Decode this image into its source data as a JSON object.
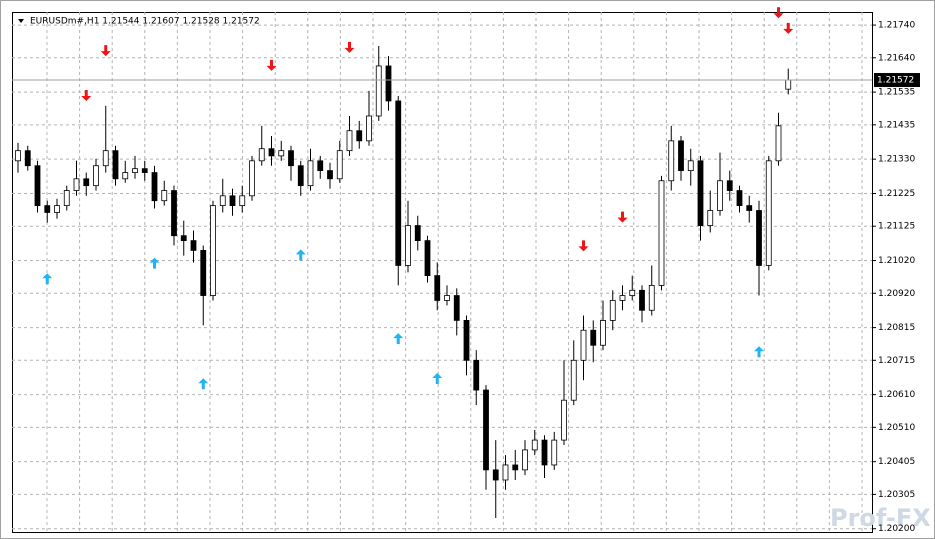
{
  "chart_data": {
    "type": "candlestick",
    "title": "EURUSDm#,H1  1.21544 1.21607 1.21528 1.21572",
    "watermark": "Prof-FX",
    "ylim": [
      1.2019,
      1.2178
    ],
    "yticks": [
      {
        "value": 1.2174,
        "label": "1.21740"
      },
      {
        "value": 1.2164,
        "label": "1.21640"
      },
      1.21535,
      1.21435,
      {
        "value": 1.2133,
        "label": "1.21330"
      },
      1.21225,
      1.21125,
      {
        "value": 1.2102,
        "label": "1.21020"
      },
      {
        "value": 1.2092,
        "label": "1.20920"
      },
      1.20815,
      1.20715,
      {
        "value": 1.2061,
        "label": "1.20610"
      },
      {
        "value": 1.2051,
        "label": "1.20510"
      },
      1.20405,
      1.20305,
      {
        "value": 1.202,
        "label": "1.20200"
      }
    ],
    "grid": true,
    "last_price": 1.21572,
    "bull_color": "#ffffff",
    "bear_color": "#000000",
    "open": [
      1.21325,
      1.21356,
      1.2131,
      1.21188,
      1.21167,
      1.21188,
      1.21234,
      1.2127,
      1.21249,
      1.2131,
      1.21356,
      1.2127,
      1.21289,
      1.21301,
      1.21289,
      1.21203,
      1.21234,
      1.21096,
      1.21081,
      1.21051,
      1.20913,
      1.21188,
      1.21218,
      1.21188,
      1.21218,
      1.21325,
      1.21362,
      1.2134,
      1.21356,
      1.2131,
      1.21249,
      1.21325,
      1.21295,
      1.2127,
      1.21356,
      1.21417,
      1.21386,
      1.21462,
      1.21615,
      1.21508,
      1.21005,
      1.21127,
      1.21081,
      1.20974,
      1.20898,
      1.20913,
      1.20837,
      1.20715,
      1.20624,
      1.2038,
      1.20349,
      1.20395,
      1.2038,
      1.20441,
      1.20471,
      1.20395,
      1.20471,
      1.20593,
      1.20715,
      1.20807,
      1.20761,
      1.20837,
      1.20898,
      1.20913,
      1.20929,
      1.20868,
      1.20944,
      1.21264,
      1.21386,
      1.21295,
      1.21325,
      1.21127,
      1.21173,
      1.21264,
      1.21234,
      1.21188,
      1.21173,
      1.21005,
      1.21325,
      1.21544
    ],
    "high": [
      1.2138,
      1.21371,
      1.21325,
      1.21203,
      1.21209,
      1.21249,
      1.21325,
      1.21289,
      1.21331,
      1.21493,
      1.21371,
      1.21325,
      1.2134,
      1.21325,
      1.2131,
      1.21264,
      1.21249,
      1.21142,
      1.21112,
      1.21066,
      1.21203,
      1.2127,
      1.2124,
      1.21249,
      1.2134,
      1.21432,
      1.21401,
      1.21386,
      1.21371,
      1.21325,
      1.21362,
      1.2134,
      1.21319,
      1.21386,
      1.21462,
      1.21447,
      1.21539,
      1.21676,
      1.21645,
      1.21523,
      1.21203,
      1.21157,
      1.21096,
      1.21014,
      1.20944,
      1.20935,
      1.20852,
      1.20746,
      1.20639,
      1.20471,
      1.20425,
      1.20441,
      1.20471,
      1.20502,
      1.20486,
      1.20496,
      1.20715,
      1.20776,
      1.20852,
      1.20837,
      1.20898,
      1.20929,
      1.20944,
      1.20974,
      1.20944,
      1.21005,
      1.21279,
      1.21432,
      1.21401,
      1.21362,
      1.2134,
      1.21234,
      1.2135,
      1.21295,
      1.21249,
      1.21218,
      1.21203,
      1.2134,
      1.21472,
      1.21607
    ],
    "low": [
      1.21289,
      1.21295,
      1.21167,
      1.21136,
      1.21148,
      1.21173,
      1.21218,
      1.21218,
      1.21234,
      1.21289,
      1.21249,
      1.21258,
      1.2127,
      1.21264,
      1.21179,
      1.21188,
      1.21066,
      1.21035,
      1.21014,
      1.20822,
      1.20898,
      1.21167,
      1.21157,
      1.21167,
      1.21203,
      1.2131,
      1.2131,
      1.21325,
      1.21264,
      1.21218,
      1.21234,
      1.2127,
      1.2124,
      1.21258,
      1.2134,
      1.21362,
      1.21371,
      1.21447,
      1.21478,
      1.20944,
      1.20984,
      1.21051,
      1.20953,
      1.20868,
      1.20883,
      1.20791,
      1.20669,
      1.20578,
      1.20319,
      1.20233,
      1.20319,
      1.20349,
      1.20364,
      1.20425,
      1.20355,
      1.2038,
      1.20456,
      1.20578,
      1.20654,
      1.20709,
      1.20746,
      1.20807,
      1.20868,
      1.20898,
      1.20831,
      1.20852,
      1.20929,
      1.21234,
      1.21264,
      1.21249,
      1.21081,
      1.21106,
      1.21157,
      1.21203,
      1.21167,
      1.21136,
      1.20913,
      1.2099,
      1.2131,
      1.21528
    ],
    "close": [
      1.21356,
      1.2131,
      1.21188,
      1.21167,
      1.21188,
      1.21234,
      1.2127,
      1.21249,
      1.2131,
      1.21356,
      1.2127,
      1.21289,
      1.21301,
      1.21289,
      1.21203,
      1.21234,
      1.21096,
      1.21081,
      1.21051,
      1.20913,
      1.21188,
      1.21218,
      1.21188,
      1.21218,
      1.21325,
      1.21362,
      1.2134,
      1.21356,
      1.2131,
      1.21249,
      1.21325,
      1.21295,
      1.2127,
      1.21356,
      1.21417,
      1.21386,
      1.21462,
      1.21615,
      1.21508,
      1.21005,
      1.21127,
      1.21081,
      1.20974,
      1.20898,
      1.20913,
      1.20837,
      1.20715,
      1.20624,
      1.2038,
      1.20349,
      1.20395,
      1.2038,
      1.20441,
      1.20471,
      1.20395,
      1.20471,
      1.20593,
      1.20715,
      1.20807,
      1.20761,
      1.20837,
      1.20898,
      1.20913,
      1.20929,
      1.20868,
      1.20944,
      1.21264,
      1.21386,
      1.21295,
      1.21325,
      1.21127,
      1.21173,
      1.21264,
      1.21234,
      1.21188,
      1.21173,
      1.21005,
      1.21325,
      1.21432,
      1.21572
    ],
    "buy_arrows": {
      "color": "#1eb4f5",
      "values": [
        null,
        null,
        null,
        1.20981,
        null,
        null,
        null,
        null,
        null,
        null,
        null,
        null,
        null,
        null,
        1.21029,
        null,
        null,
        null,
        null,
        1.2066,
        null,
        null,
        null,
        null,
        null,
        null,
        null,
        null,
        null,
        1.21054,
        null,
        null,
        null,
        null,
        null,
        null,
        null,
        null,
        null,
        1.20798,
        null,
        null,
        null,
        1.20676,
        null,
        null,
        null,
        null,
        null,
        null,
        null,
        null,
        null,
        null,
        null,
        null,
        null,
        null,
        null,
        null,
        null,
        null,
        null,
        null,
        null,
        null,
        null,
        null,
        null,
        null,
        null,
        null,
        null,
        null,
        null,
        null,
        1.20758,
        null,
        null,
        null
      ]
    },
    "sell_arrows": {
      "color": "#f01414",
      "values": [
        null,
        null,
        null,
        null,
        null,
        null,
        null,
        1.21508,
        null,
        1.21645,
        null,
        null,
        null,
        null,
        null,
        null,
        null,
        null,
        null,
        null,
        null,
        null,
        null,
        null,
        null,
        null,
        1.216,
        null,
        null,
        null,
        null,
        null,
        null,
        null,
        1.21655,
        null,
        null,
        null,
        null,
        null,
        null,
        null,
        null,
        null,
        null,
        null,
        null,
        null,
        null,
        null,
        null,
        null,
        null,
        null,
        null,
        null,
        null,
        null,
        1.21048,
        null,
        null,
        null,
        1.21136,
        null,
        null,
        null,
        null,
        null,
        null,
        null,
        null,
        null,
        null,
        null,
        null,
        null,
        null,
        null,
        1.21761,
        1.21713
      ]
    }
  }
}
